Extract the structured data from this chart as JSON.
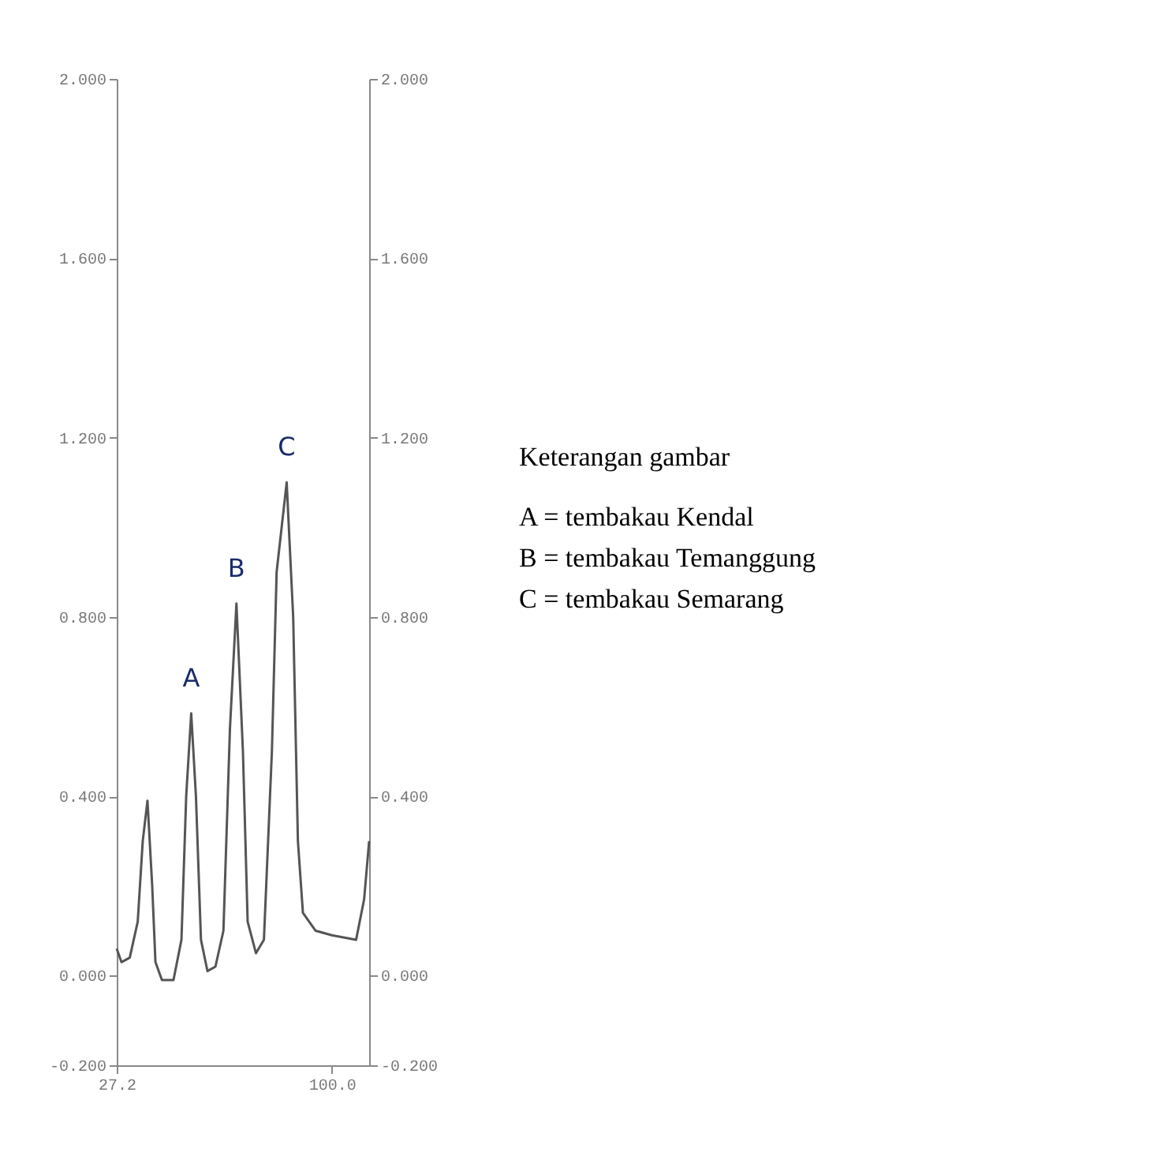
{
  "chart_data": {
    "type": "line",
    "x": [
      27.2,
      28.8,
      31.6,
      34.3,
      36.0,
      37.6,
      39.2,
      40.3,
      42.5,
      46.4,
      49.1,
      50.7,
      52.4,
      54.0,
      55.7,
      57.9,
      60.6,
      63.3,
      65.5,
      67.7,
      69.9,
      71.5,
      74.3,
      77.0,
      79.7,
      81.3,
      84.7,
      86.9,
      88.5,
      90.2,
      94.5,
      100.0,
      108.2,
      110.9,
      112.6
    ],
    "series": [
      {
        "color": "#555555",
        "values": [
          0.06,
          0.03,
          0.04,
          0.12,
          0.3,
          0.39,
          0.2,
          0.03,
          -0.01,
          -0.01,
          0.08,
          0.4,
          0.585,
          0.4,
          0.08,
          0.01,
          0.02,
          0.1,
          0.55,
          0.83,
          0.5,
          0.12,
          0.05,
          0.08,
          0.5,
          0.9,
          1.1,
          0.8,
          0.3,
          0.14,
          0.1,
          0.09,
          0.08,
          0.17,
          0.3
        ]
      }
    ],
    "xlim": [
      27.2,
      112.6
    ],
    "xticks": [
      {
        "value": 27.2,
        "label": "27.2"
      },
      {
        "value": 100.0,
        "label": "100.0"
      }
    ],
    "ylim": [
      -0.2,
      2.0
    ],
    "yticks": [
      {
        "value": -0.2,
        "label": "-0.200"
      },
      {
        "value": 0.0,
        "label": "0.000"
      },
      {
        "value": 0.4,
        "label": "0.400"
      },
      {
        "value": 0.8,
        "label": "0.800"
      },
      {
        "value": 1.2,
        "label": "1.200"
      },
      {
        "value": 1.6,
        "label": "1.600"
      },
      {
        "value": 2.0,
        "label": "2.000"
      }
    ],
    "y2lim": [
      -0.2,
      2.0
    ],
    "y2ticks": [
      {
        "value": -0.2,
        "label": "-0.200"
      },
      {
        "value": 0.0,
        "label": "0.000"
      },
      {
        "value": 0.4,
        "label": "0.400"
      },
      {
        "value": 0.8,
        "label": "0.800"
      },
      {
        "value": 1.2,
        "label": "1.200"
      },
      {
        "value": 1.6,
        "label": "1.600"
      },
      {
        "value": 2.0,
        "label": "2.000"
      }
    ],
    "annotations": [
      {
        "text": "A",
        "x": 52.4,
        "y": 0.585
      },
      {
        "text": "B",
        "x": 67.7,
        "y": 0.83
      },
      {
        "text": "C",
        "x": 84.7,
        "y": 1.1
      },
      "Keterangan gambar",
      "A = tembakau Kendal",
      "B = tembakau Temanggung",
      "C = tembakau Semarang"
    ]
  }
}
